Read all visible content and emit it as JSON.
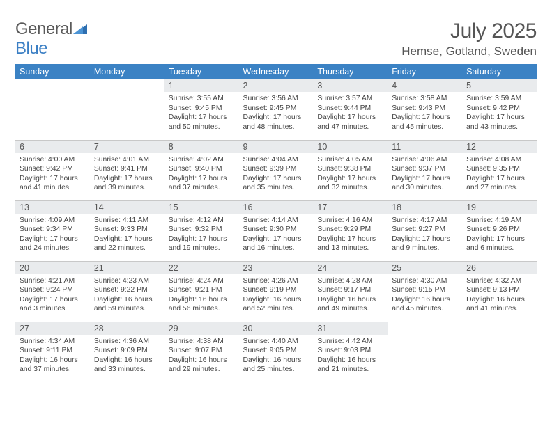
{
  "logo": {
    "word1": "General",
    "word2": "Blue"
  },
  "title": "July 2025",
  "location": "Hemse, Gotland, Sweden",
  "colors": {
    "header_bg": "#3b82c4",
    "header_text": "#ffffff",
    "daynum_bg": "#e9ebed",
    "text": "#555555",
    "body_text": "#444444",
    "rule": "#c8c8c8",
    "logo_gray": "#5a5a5a",
    "logo_blue": "#3b7fc4"
  },
  "weekdays": [
    "Sunday",
    "Monday",
    "Tuesday",
    "Wednesday",
    "Thursday",
    "Friday",
    "Saturday"
  ],
  "weeks": [
    [
      null,
      null,
      {
        "n": "1",
        "sunrise": "3:55 AM",
        "sunset": "9:45 PM",
        "dh": "17",
        "dm": "50"
      },
      {
        "n": "2",
        "sunrise": "3:56 AM",
        "sunset": "9:45 PM",
        "dh": "17",
        "dm": "48"
      },
      {
        "n": "3",
        "sunrise": "3:57 AM",
        "sunset": "9:44 PM",
        "dh": "17",
        "dm": "47"
      },
      {
        "n": "4",
        "sunrise": "3:58 AM",
        "sunset": "9:43 PM",
        "dh": "17",
        "dm": "45"
      },
      {
        "n": "5",
        "sunrise": "3:59 AM",
        "sunset": "9:42 PM",
        "dh": "17",
        "dm": "43"
      }
    ],
    [
      {
        "n": "6",
        "sunrise": "4:00 AM",
        "sunset": "9:42 PM",
        "dh": "17",
        "dm": "41"
      },
      {
        "n": "7",
        "sunrise": "4:01 AM",
        "sunset": "9:41 PM",
        "dh": "17",
        "dm": "39"
      },
      {
        "n": "8",
        "sunrise": "4:02 AM",
        "sunset": "9:40 PM",
        "dh": "17",
        "dm": "37"
      },
      {
        "n": "9",
        "sunrise": "4:04 AM",
        "sunset": "9:39 PM",
        "dh": "17",
        "dm": "35"
      },
      {
        "n": "10",
        "sunrise": "4:05 AM",
        "sunset": "9:38 PM",
        "dh": "17",
        "dm": "32"
      },
      {
        "n": "11",
        "sunrise": "4:06 AM",
        "sunset": "9:37 PM",
        "dh": "17",
        "dm": "30"
      },
      {
        "n": "12",
        "sunrise": "4:08 AM",
        "sunset": "9:35 PM",
        "dh": "17",
        "dm": "27"
      }
    ],
    [
      {
        "n": "13",
        "sunrise": "4:09 AM",
        "sunset": "9:34 PM",
        "dh": "17",
        "dm": "24"
      },
      {
        "n": "14",
        "sunrise": "4:11 AM",
        "sunset": "9:33 PM",
        "dh": "17",
        "dm": "22"
      },
      {
        "n": "15",
        "sunrise": "4:12 AM",
        "sunset": "9:32 PM",
        "dh": "17",
        "dm": "19"
      },
      {
        "n": "16",
        "sunrise": "4:14 AM",
        "sunset": "9:30 PM",
        "dh": "17",
        "dm": "16"
      },
      {
        "n": "17",
        "sunrise": "4:16 AM",
        "sunset": "9:29 PM",
        "dh": "17",
        "dm": "13"
      },
      {
        "n": "18",
        "sunrise": "4:17 AM",
        "sunset": "9:27 PM",
        "dh": "17",
        "dm": "9"
      },
      {
        "n": "19",
        "sunrise": "4:19 AM",
        "sunset": "9:26 PM",
        "dh": "17",
        "dm": "6"
      }
    ],
    [
      {
        "n": "20",
        "sunrise": "4:21 AM",
        "sunset": "9:24 PM",
        "dh": "17",
        "dm": "3"
      },
      {
        "n": "21",
        "sunrise": "4:23 AM",
        "sunset": "9:22 PM",
        "dh": "16",
        "dm": "59"
      },
      {
        "n": "22",
        "sunrise": "4:24 AM",
        "sunset": "9:21 PM",
        "dh": "16",
        "dm": "56"
      },
      {
        "n": "23",
        "sunrise": "4:26 AM",
        "sunset": "9:19 PM",
        "dh": "16",
        "dm": "52"
      },
      {
        "n": "24",
        "sunrise": "4:28 AM",
        "sunset": "9:17 PM",
        "dh": "16",
        "dm": "49"
      },
      {
        "n": "25",
        "sunrise": "4:30 AM",
        "sunset": "9:15 PM",
        "dh": "16",
        "dm": "45"
      },
      {
        "n": "26",
        "sunrise": "4:32 AM",
        "sunset": "9:13 PM",
        "dh": "16",
        "dm": "41"
      }
    ],
    [
      {
        "n": "27",
        "sunrise": "4:34 AM",
        "sunset": "9:11 PM",
        "dh": "16",
        "dm": "37"
      },
      {
        "n": "28",
        "sunrise": "4:36 AM",
        "sunset": "9:09 PM",
        "dh": "16",
        "dm": "33"
      },
      {
        "n": "29",
        "sunrise": "4:38 AM",
        "sunset": "9:07 PM",
        "dh": "16",
        "dm": "29"
      },
      {
        "n": "30",
        "sunrise": "4:40 AM",
        "sunset": "9:05 PM",
        "dh": "16",
        "dm": "25"
      },
      {
        "n": "31",
        "sunrise": "4:42 AM",
        "sunset": "9:03 PM",
        "dh": "16",
        "dm": "21"
      },
      null,
      null
    ]
  ],
  "labels": {
    "sunrise": "Sunrise:",
    "sunset": "Sunset:",
    "daylight": "Daylight:",
    "hours": "hours",
    "and": "and",
    "minutes": "minutes."
  }
}
